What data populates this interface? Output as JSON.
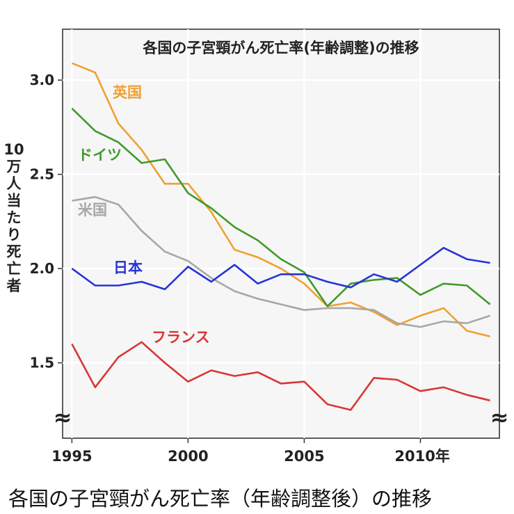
{
  "caption": "各国の子宮頸がん死亡率（年齢調整後）の推移",
  "chart_data": {
    "type": "line",
    "title": "各国の子宮頸がん死亡率(年齢調整)の推移",
    "ylabel": "10万人当たり死亡者",
    "xlabel": "",
    "x": [
      1995,
      1996,
      1997,
      1998,
      1999,
      2000,
      2001,
      2002,
      2003,
      2004,
      2005,
      2006,
      2007,
      2008,
      2009,
      2010,
      2011,
      2012,
      2013
    ],
    "xticks": [
      1995,
      2000,
      2005,
      2010
    ],
    "xtick_labels": [
      "1995",
      "2000",
      "2005",
      "2010年"
    ],
    "yticks": [
      1.5,
      2.0,
      2.5,
      3.0
    ],
    "ytick_labels": [
      "1.5",
      "2.0",
      "2.5",
      "3.0"
    ],
    "xlim": [
      1994.6,
      2013.4
    ],
    "ylim": [
      1.1,
      3.27
    ],
    "axis_break_symbol": "≈",
    "grid": true,
    "series": [
      {
        "name": "英国",
        "color": "#f0a030",
        "values": [
          3.09,
          3.04,
          2.77,
          2.63,
          2.45,
          2.45,
          2.3,
          2.1,
          2.06,
          2.0,
          1.92,
          1.8,
          1.82,
          1.77,
          1.7,
          1.75,
          1.79,
          1.67,
          1.64
        ]
      },
      {
        "name": "ドイツ",
        "color": "#3f9a2a",
        "values": [
          2.85,
          2.73,
          2.67,
          2.56,
          2.58,
          2.4,
          2.32,
          2.22,
          2.15,
          2.05,
          1.98,
          1.8,
          1.92,
          1.94,
          1.95,
          1.86,
          1.92,
          1.91,
          1.81
        ]
      },
      {
        "name": "米国",
        "color": "#a7a7a7",
        "values": [
          2.36,
          2.38,
          2.34,
          2.2,
          2.09,
          2.04,
          1.95,
          1.88,
          1.84,
          1.81,
          1.78,
          1.79,
          1.79,
          1.78,
          1.71,
          1.69,
          1.72,
          1.71,
          1.75
        ]
      },
      {
        "name": "日本",
        "color": "#2733d6",
        "values": [
          2.0,
          1.91,
          1.91,
          1.93,
          1.89,
          2.01,
          1.93,
          2.02,
          1.92,
          1.97,
          1.97,
          1.93,
          1.9,
          1.97,
          1.93,
          2.02,
          2.11,
          2.05,
          2.03
        ]
      },
      {
        "name": "フランス",
        "color": "#d93535",
        "values": [
          1.6,
          1.37,
          1.53,
          1.61,
          1.5,
          1.4,
          1.46,
          1.43,
          1.45,
          1.39,
          1.4,
          1.28,
          1.25,
          1.42,
          1.41,
          1.35,
          1.37,
          1.33,
          1.3
        ]
      }
    ]
  }
}
